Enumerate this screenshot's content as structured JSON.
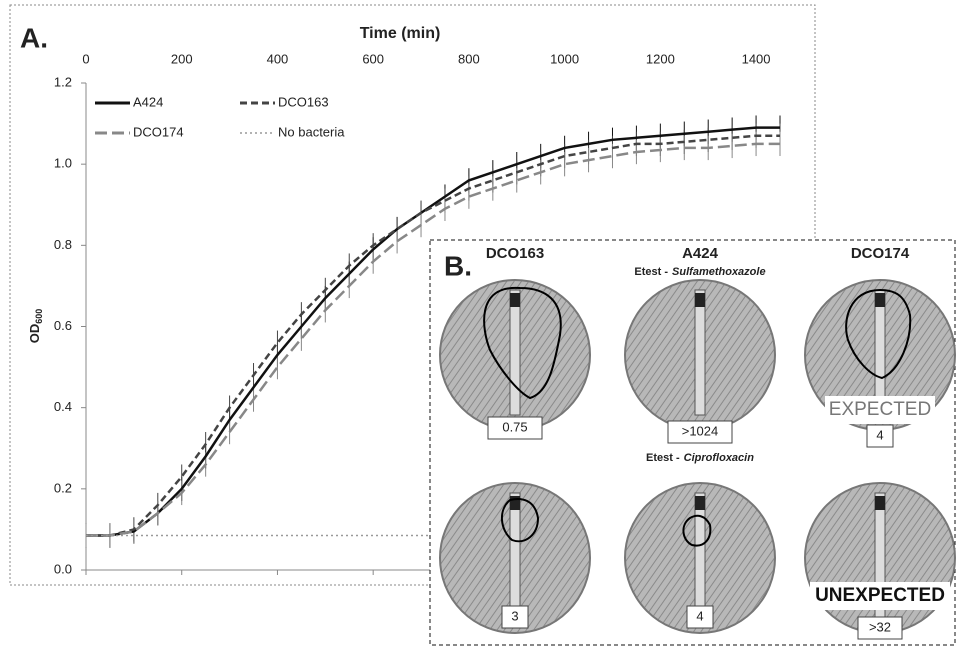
{
  "chart_data": {
    "type": "line",
    "panel_label": "A.",
    "x_label": "Time (min)",
    "y_label": "OD",
    "y_label_sub": "600",
    "x": [
      0,
      50,
      100,
      150,
      200,
      250,
      300,
      350,
      400,
      450,
      500,
      550,
      600,
      650,
      700,
      750,
      800,
      850,
      900,
      950,
      1000,
      1050,
      1100,
      1150,
      1200,
      1250,
      1300,
      1350,
      1400,
      1450
    ],
    "series": [
      {
        "name": "A424",
        "color": "#111111",
        "linestyle": "solid",
        "error": 0.03,
        "values": [
          0.085,
          0.085,
          0.095,
          0.14,
          0.2,
          0.28,
          0.37,
          0.45,
          0.53,
          0.6,
          0.67,
          0.73,
          0.79,
          0.84,
          0.88,
          0.92,
          0.96,
          0.98,
          1.0,
          1.02,
          1.04,
          1.05,
          1.06,
          1.065,
          1.07,
          1.075,
          1.08,
          1.085,
          1.09,
          1.09
        ]
      },
      {
        "name": "DCO163",
        "color": "#444444",
        "linestyle": "dashed",
        "error": 0.03,
        "values": [
          0.085,
          0.085,
          0.1,
          0.16,
          0.23,
          0.31,
          0.4,
          0.48,
          0.56,
          0.63,
          0.69,
          0.75,
          0.8,
          0.84,
          0.88,
          0.91,
          0.94,
          0.96,
          0.98,
          1.0,
          1.02,
          1.03,
          1.04,
          1.05,
          1.05,
          1.055,
          1.06,
          1.065,
          1.07,
          1.07
        ]
      },
      {
        "name": "DCO174",
        "color": "#888888",
        "linestyle": "longdash",
        "error": 0.03,
        "values": [
          0.085,
          0.085,
          0.095,
          0.14,
          0.19,
          0.26,
          0.34,
          0.42,
          0.5,
          0.57,
          0.64,
          0.7,
          0.76,
          0.81,
          0.85,
          0.89,
          0.92,
          0.94,
          0.96,
          0.98,
          1.0,
          1.01,
          1.02,
          1.03,
          1.035,
          1.04,
          1.04,
          1.045,
          1.05,
          1.05
        ]
      },
      {
        "name": "No bacteria",
        "color": "#999999",
        "linestyle": "dotted",
        "values": [
          0.085,
          0.085,
          0.085,
          0.085,
          0.085,
          0.085,
          0.085,
          0.085,
          0.085,
          0.085,
          0.085,
          0.085,
          0.085,
          0.085,
          0.085,
          0.085,
          0.085,
          0.085,
          0.085,
          0.085,
          0.085,
          0.085,
          0.085,
          0.085,
          0.085,
          0.085,
          0.085,
          0.085,
          0.085,
          0.085
        ]
      }
    ],
    "xlim": [
      0,
      1450
    ],
    "xticks": [
      0,
      200,
      400,
      600,
      800,
      1000,
      1200,
      1400
    ],
    "ylim": [
      0,
      1.2
    ],
    "yticks": [
      {
        "value": 0,
        "label": "0.0"
      },
      0.2,
      0.4,
      0.6,
      0.8,
      {
        "value": 1,
        "label": "1.0"
      },
      1.2
    ],
    "legend": "upper left"
  },
  "panel_b": {
    "panel_label": "B.",
    "columns": [
      "DCO163",
      "A424",
      "DCO174"
    ],
    "rows": [
      {
        "title_prefix": "Etest -",
        "title_drug": "Sulfamethoxazole",
        "dishes": [
          "0.75",
          ">1024",
          "4"
        ],
        "note": "EXPECTED"
      },
      {
        "title_prefix": "Etest -",
        "title_drug": "Ciprofloxacin",
        "dishes": [
          "3",
          "4",
          ">32"
        ],
        "note": "UNEXPECTED"
      }
    ]
  }
}
